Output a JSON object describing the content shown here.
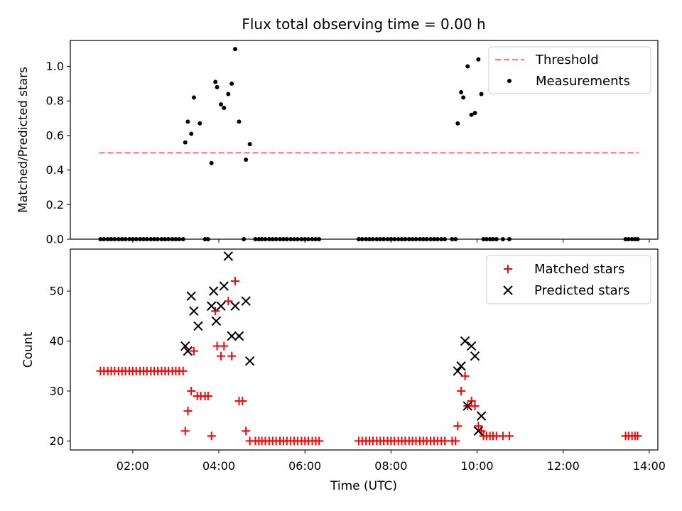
{
  "chart_data": {
    "title": "Flux total observing time = 0.00 h",
    "top": {
      "type": "scatter",
      "ylabel": "Matched/Predicted stars",
      "ylim": [
        0,
        1.15
      ],
      "yticks": [
        0.0,
        0.2,
        0.4,
        0.6,
        0.8,
        1.0
      ],
      "ytick_labels": [
        "0.0",
        "0.2",
        "0.4",
        "0.6",
        "0.8",
        "1.0"
      ],
      "legend_location": "upper right",
      "threshold": {
        "name": "Threshold",
        "value": 0.5,
        "x_range": [
          1.22,
          13.75
        ],
        "color": "#ff7f7f"
      },
      "measurements": {
        "name": "Measurements",
        "color": "#000000",
        "x": [
          3.22,
          3.28,
          3.36,
          3.42,
          3.56,
          3.83,
          3.92,
          3.96,
          4.05,
          4.12,
          4.22,
          4.3,
          4.38,
          4.47,
          4.63,
          4.72,
          9.55,
          9.63,
          9.68,
          9.78,
          9.87,
          9.95,
          10.03,
          10.1
        ],
        "y": [
          0.56,
          0.68,
          0.61,
          0.82,
          0.67,
          0.44,
          0.91,
          0.88,
          0.78,
          0.76,
          0.84,
          0.9,
          1.1,
          0.68,
          0.46,
          0.55,
          0.67,
          0.85,
          0.82,
          1.0,
          0.72,
          0.73,
          1.04,
          0.84
        ],
        "zero_x": [
          1.25,
          1.33,
          1.42,
          1.5,
          1.58,
          1.67,
          1.75,
          1.83,
          1.92,
          2.0,
          2.08,
          2.17,
          2.25,
          2.33,
          2.42,
          2.5,
          2.58,
          2.67,
          2.75,
          2.83,
          2.92,
          3.0,
          3.08,
          3.17,
          3.68,
          3.75,
          4.58,
          4.85,
          4.93,
          5.0,
          5.08,
          5.17,
          5.25,
          5.33,
          5.42,
          5.5,
          5.58,
          5.67,
          5.75,
          5.83,
          5.92,
          6.0,
          6.08,
          6.17,
          6.25,
          6.33,
          7.25,
          7.33,
          7.42,
          7.5,
          7.58,
          7.67,
          7.75,
          7.83,
          7.92,
          8.0,
          8.08,
          8.17,
          8.25,
          8.33,
          8.42,
          8.5,
          8.58,
          8.67,
          8.75,
          8.83,
          8.92,
          9.0,
          9.08,
          9.17,
          9.25,
          9.42,
          9.5,
          10.15,
          10.22,
          10.3,
          10.37,
          10.45,
          10.6,
          10.75,
          13.45,
          13.52,
          13.6,
          13.67,
          13.73
        ]
      }
    },
    "bottom": {
      "type": "scatter",
      "xlabel": "Time (UTC)",
      "ylabel": "Count",
      "xlim": [
        0.55,
        14.2
      ],
      "ylim": [
        18.2,
        58.4
      ],
      "xticks": [
        2,
        4,
        6,
        8,
        10,
        12,
        14
      ],
      "xtick_labels": [
        "02:00",
        "04:00",
        "06:00",
        "08:00",
        "10:00",
        "12:00",
        "14:00"
      ],
      "yticks": [
        20,
        30,
        40,
        50
      ],
      "ytick_labels": [
        "20",
        "30",
        "40",
        "50"
      ],
      "legend_location": "upper right",
      "series": [
        {
          "name": "Matched stars",
          "marker": "+",
          "color": "#ff0000",
          "x": [
            1.25,
            1.33,
            1.42,
            1.5,
            1.58,
            1.67,
            1.75,
            1.83,
            1.92,
            2.0,
            2.08,
            2.17,
            2.25,
            2.33,
            2.42,
            2.5,
            2.58,
            2.67,
            2.75,
            2.83,
            2.92,
            3.0,
            3.08,
            3.17,
            3.22,
            3.28,
            3.36,
            3.42,
            3.5,
            3.58,
            3.68,
            3.75,
            3.83,
            3.92,
            3.96,
            4.05,
            4.12,
            4.22,
            4.3,
            4.38,
            4.47,
            4.55,
            4.63,
            4.72,
            4.85,
            4.93,
            5.0,
            5.08,
            5.17,
            5.25,
            5.33,
            5.42,
            5.5,
            5.58,
            5.67,
            5.75,
            5.83,
            5.92,
            6.0,
            6.08,
            6.17,
            6.25,
            6.33,
            7.25,
            7.33,
            7.42,
            7.5,
            7.58,
            7.67,
            7.75,
            7.83,
            7.92,
            8.0,
            8.08,
            8.17,
            8.25,
            8.33,
            8.42,
            8.5,
            8.58,
            8.67,
            8.75,
            8.83,
            8.92,
            9.0,
            9.08,
            9.17,
            9.25,
            9.42,
            9.5,
            9.55,
            9.63,
            9.72,
            9.78,
            9.87,
            9.95,
            10.03,
            10.1,
            10.15,
            10.22,
            10.3,
            10.37,
            10.45,
            10.6,
            10.75,
            13.45,
            13.52,
            13.6,
            13.67,
            13.73
          ],
          "y": [
            34,
            34,
            34,
            34,
            34,
            34,
            34,
            34,
            34,
            34,
            34,
            34,
            34,
            34,
            34,
            34,
            34,
            34,
            34,
            34,
            34,
            34,
            34,
            34,
            22,
            26,
            30,
            38,
            29,
            29,
            29,
            29,
            21,
            46,
            39,
            37,
            39,
            48,
            37,
            52,
            28,
            28,
            22,
            20,
            20,
            20,
            20,
            20,
            20,
            20,
            20,
            20,
            20,
            20,
            20,
            20,
            20,
            20,
            20,
            20,
            20,
            20,
            20,
            20,
            20,
            20,
            20,
            20,
            20,
            20,
            20,
            20,
            20,
            20,
            20,
            20,
            20,
            20,
            20,
            20,
            20,
            20,
            20,
            20,
            20,
            20,
            20,
            20,
            20,
            20,
            23,
            30,
            33,
            27,
            28,
            27,
            23,
            22,
            21,
            21,
            21,
            21,
            21,
            21,
            21,
            21,
            21,
            21,
            21,
            21
          ]
        },
        {
          "name": "Predicted stars",
          "marker": "x",
          "color": "#000000",
          "x": [
            3.22,
            3.28,
            3.36,
            3.42,
            3.52,
            3.83,
            3.88,
            3.94,
            4.05,
            4.12,
            4.22,
            4.3,
            4.38,
            4.47,
            4.63,
            4.72,
            9.55,
            9.63,
            9.72,
            9.78,
            9.87,
            9.95,
            10.03,
            10.1
          ],
          "y": [
            39,
            38,
            49,
            46,
            43,
            47,
            50,
            44,
            47,
            51,
            57,
            41,
            47,
            41,
            48,
            36,
            34,
            35,
            40,
            27,
            39,
            37,
            22,
            25
          ]
        }
      ]
    }
  }
}
